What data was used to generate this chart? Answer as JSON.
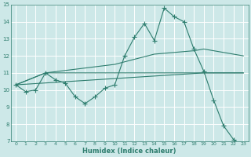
{
  "xlabel": "Humidex (Indice chaleur)",
  "bg_color": "#cde8e8",
  "grid_color": "#ffffff",
  "line_color": "#2e7d6e",
  "xlim": [
    -0.5,
    23.5
  ],
  "ylim": [
    7,
    15
  ],
  "yticks": [
    7,
    8,
    9,
    10,
    11,
    12,
    13,
    14,
    15
  ],
  "xticks": [
    0,
    1,
    2,
    3,
    4,
    5,
    6,
    7,
    8,
    9,
    10,
    11,
    12,
    13,
    14,
    15,
    16,
    17,
    18,
    19,
    20,
    21,
    22,
    23
  ],
  "line1_x": [
    0,
    1,
    2,
    3,
    4,
    5,
    6,
    7,
    8,
    9,
    10,
    11,
    12,
    13,
    14,
    15,
    16,
    17,
    18,
    19,
    20,
    21,
    22,
    23
  ],
  "line1_y": [
    10.3,
    9.9,
    10.0,
    11.0,
    10.6,
    10.4,
    9.6,
    9.2,
    9.6,
    10.1,
    10.3,
    12.0,
    13.1,
    13.9,
    12.9,
    14.8,
    14.3,
    14.0,
    12.4,
    11.1,
    9.4,
    7.9,
    7.1,
    6.7
  ],
  "line2_x": [
    0,
    19,
    23
  ],
  "line2_y": [
    10.3,
    11.0,
    11.0
  ],
  "line3_x": [
    0,
    3,
    10,
    14,
    18,
    19,
    23
  ],
  "line3_y": [
    10.3,
    11.0,
    11.5,
    12.1,
    12.3,
    12.4,
    12.0
  ],
  "line4_x": [
    0,
    3,
    10,
    19,
    22,
    23
  ],
  "line4_y": [
    10.3,
    11.0,
    11.0,
    11.0,
    11.0,
    11.0
  ]
}
